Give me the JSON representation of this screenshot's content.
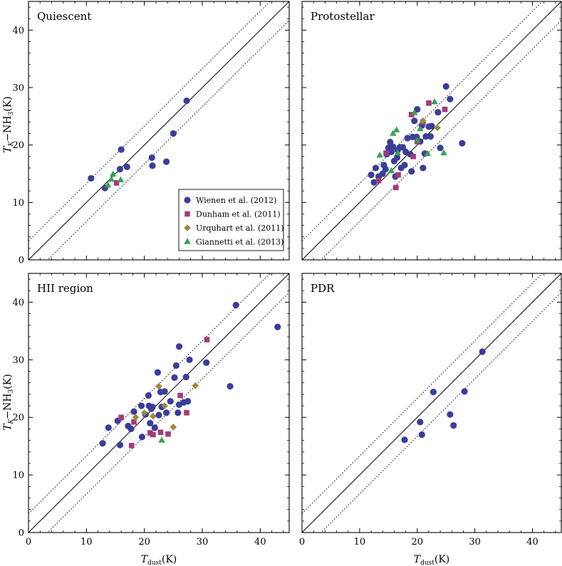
{
  "colors": {
    "wienen": "#3b3d99",
    "dunham": "#a53a78",
    "urquhart": "#9b8a3a",
    "giannetti": "#3aa055"
  },
  "axis_labels": {
    "x": {
      "main": "T",
      "sub": "dust",
      "unit": "(K)"
    },
    "y": {
      "main": "T",
      "sub": "K",
      "mid": "−NH",
      "sub2": "3",
      "unit": "(K)"
    }
  },
  "legend": [
    {
      "name": "Wienen et al. (2012)",
      "marker": "circle",
      "color_key": "wienen"
    },
    {
      "name": "Dunham et al. (2011)",
      "marker": "square",
      "color_key": "dunham"
    },
    {
      "name": "Urquhart et al. (2011)",
      "marker": "diamond",
      "color_key": "urquhart"
    },
    {
      "name": "Giannetti et al. (2013)",
      "marker": "triangle",
      "color_key": "giannetti"
    }
  ],
  "chart_data": [
    {
      "type": "scatter",
      "title": "Quiescent",
      "xlim": [
        0,
        45
      ],
      "ylim": [
        0,
        45
      ],
      "xticks": [
        0,
        10,
        20,
        30,
        40
      ],
      "yticks": [
        0,
        10,
        20,
        30,
        40
      ],
      "reference_lines": {
        "one_to_one": true,
        "offset": 3.3
      },
      "show_legend": true,
      "series": [
        {
          "name": "Wienen et al. (2012)",
          "points": [
            [
              10.8,
              14.2
            ],
            [
              13.2,
              12.5
            ],
            [
              15.8,
              15.8
            ],
            [
              16.0,
              19.2
            ],
            [
              17.0,
              16.2
            ],
            [
              21.3,
              17.8
            ],
            [
              21.4,
              16.4
            ],
            [
              23.8,
              17.1
            ],
            [
              25.0,
              22.0
            ],
            [
              27.3,
              27.7
            ]
          ]
        },
        {
          "name": "Dunham et al. (2011)",
          "points": [
            [
              15.2,
              13.4
            ]
          ]
        },
        {
          "name": "Urquhart et al. (2011)",
          "points": []
        },
        {
          "name": "Giannetti et al. (2013)",
          "points": [
            [
              13.7,
              13.0
            ],
            [
              14.3,
              14.0
            ],
            [
              14.6,
              14.9
            ],
            [
              15.9,
              13.9
            ]
          ]
        }
      ]
    },
    {
      "type": "scatter",
      "title": "Protostellar",
      "xlim": [
        0,
        45
      ],
      "ylim": [
        0,
        45
      ],
      "xticks": [
        0,
        10,
        20,
        30,
        40
      ],
      "yticks": [
        0,
        10,
        20,
        30,
        40
      ],
      "reference_lines": {
        "one_to_one": true,
        "offset": 3.3
      },
      "show_legend": false,
      "series": [
        {
          "name": "Wienen et al. (2012)",
          "points": [
            [
              12.0,
              14.8
            ],
            [
              12.5,
              13.5
            ],
            [
              12.8,
              16.0
            ],
            [
              13.3,
              14.5
            ],
            [
              14.0,
              15.0
            ],
            [
              14.2,
              16.5
            ],
            [
              14.5,
              15.8
            ],
            [
              14.7,
              18.4
            ],
            [
              15.0,
              19.5
            ],
            [
              15.3,
              20.5
            ],
            [
              15.5,
              18.8
            ],
            [
              15.8,
              19.7
            ],
            [
              16.0,
              17.2
            ],
            [
              16.2,
              14.5
            ],
            [
              16.5,
              17.8
            ],
            [
              16.6,
              19.1
            ],
            [
              17.0,
              19.6
            ],
            [
              17.2,
              16.0
            ],
            [
              17.5,
              19.6
            ],
            [
              17.8,
              16.5
            ],
            [
              18.0,
              18.8
            ],
            [
              18.3,
              21.2
            ],
            [
              18.8,
              18.4
            ],
            [
              19.0,
              15.4
            ],
            [
              19.2,
              21.4
            ],
            [
              19.5,
              24.2
            ],
            [
              19.9,
              21.4
            ],
            [
              20.0,
              26.2
            ],
            [
              20.5,
              20.6
            ],
            [
              20.8,
              23.4
            ],
            [
              21.0,
              16.0
            ],
            [
              21.3,
              18.5
            ],
            [
              21.5,
              21.5
            ],
            [
              22.0,
              23.2
            ],
            [
              22.3,
              21.5
            ],
            [
              22.5,
              23.3
            ],
            [
              23.6,
              25.7
            ],
            [
              24.0,
              19.5
            ],
            [
              25.0,
              30.2
            ],
            [
              25.7,
              28.0
            ],
            [
              27.8,
              20.3
            ]
          ]
        },
        {
          "name": "Dunham et al. (2011)",
          "points": [
            [
              13.3,
              13.8
            ],
            [
              14.6,
              18.6
            ],
            [
              16.3,
              12.6
            ],
            [
              16.7,
              14.8
            ],
            [
              19.0,
              25.3
            ],
            [
              19.3,
              18.0
            ],
            [
              20.0,
              20.6
            ],
            [
              21.0,
              24.0
            ],
            [
              22.0,
              27.3
            ],
            [
              24.8,
              26.2
            ]
          ]
        },
        {
          "name": "Urquhart et al. (2011)",
          "points": [
            [
              21.0,
              24.2
            ],
            [
              23.5,
              23.0
            ]
          ]
        },
        {
          "name": "Giannetti et al. (2013)",
          "points": [
            [
              13.5,
              18.2
            ],
            [
              15.5,
              15.5
            ],
            [
              15.8,
              22.0
            ],
            [
              16.4,
              22.6
            ],
            [
              16.6,
              18.6
            ],
            [
              19.5,
              25.6
            ],
            [
              20.0,
              20.8
            ],
            [
              20.5,
              22.8
            ],
            [
              21.8,
              18.5
            ],
            [
              23.0,
              27.5
            ],
            [
              24.6,
              18.6
            ]
          ]
        }
      ]
    },
    {
      "type": "scatter",
      "title": "HII region",
      "xlim": [
        0,
        45
      ],
      "ylim": [
        0,
        45
      ],
      "xticks": [
        0,
        10,
        20,
        30,
        40
      ],
      "yticks": [
        0,
        10,
        20,
        30,
        40
      ],
      "reference_lines": {
        "one_to_one": true,
        "offset": 3.3
      },
      "show_legend": false,
      "series": [
        {
          "name": "Wienen et al. (2012)",
          "points": [
            [
              12.8,
              15.5
            ],
            [
              13.8,
              18.2
            ],
            [
              15.4,
              19.4
            ],
            [
              15.8,
              15.2
            ],
            [
              17.2,
              18.5
            ],
            [
              17.7,
              18.0
            ],
            [
              18.2,
              21.0
            ],
            [
              19.5,
              22.0
            ],
            [
              19.6,
              16.6
            ],
            [
              20.2,
              20.5
            ],
            [
              20.7,
              23.8
            ],
            [
              20.8,
              22.0
            ],
            [
              21.0,
              19.0
            ],
            [
              21.2,
              21.5
            ],
            [
              21.4,
              21.8
            ],
            [
              21.8,
              18.2
            ],
            [
              22.3,
              27.8
            ],
            [
              22.5,
              20.4
            ],
            [
              22.8,
              24.4
            ],
            [
              23.0,
              21.8
            ],
            [
              23.5,
              24.5
            ],
            [
              23.8,
              20.8
            ],
            [
              24.5,
              22.8
            ],
            [
              25.2,
              26.9
            ],
            [
              25.5,
              29.0
            ],
            [
              25.8,
              20.8
            ],
            [
              26.0,
              22.2
            ],
            [
              26.0,
              32.3
            ],
            [
              26.8,
              22.6
            ],
            [
              27.2,
              27.0
            ],
            [
              27.5,
              22.8
            ],
            [
              27.8,
              30.0
            ],
            [
              30.7,
              29.5
            ],
            [
              34.8,
              25.4
            ],
            [
              35.8,
              39.5
            ],
            [
              43.0,
              35.7
            ]
          ]
        },
        {
          "name": "Dunham et al. (2011)",
          "points": [
            [
              16.0,
              20.0
            ],
            [
              17.8,
              15.1
            ],
            [
              18.2,
              19.2
            ],
            [
              21.0,
              17.3
            ],
            [
              21.5,
              17.0
            ],
            [
              22.8,
              17.4
            ],
            [
              24.1,
              17.1
            ],
            [
              26.2,
              23.8
            ],
            [
              27.3,
              20.8
            ],
            [
              30.8,
              33.5
            ]
          ]
        },
        {
          "name": "Urquhart et al. (2011)",
          "points": [
            [
              18.5,
              20.0
            ],
            [
              20.0,
              20.8
            ],
            [
              21.5,
              20.2
            ],
            [
              22.5,
              25.4
            ],
            [
              23.5,
              22.0
            ],
            [
              25.0,
              18.3
            ],
            [
              28.8,
              25.5
            ]
          ]
        },
        {
          "name": "Giannetti et al. (2013)",
          "points": [
            [
              23.0,
              16.0
            ]
          ]
        }
      ]
    },
    {
      "type": "scatter",
      "title": "PDR",
      "xlim": [
        0,
        45
      ],
      "ylim": [
        0,
        45
      ],
      "xticks": [
        0,
        10,
        20,
        30,
        40
      ],
      "yticks": [
        0,
        10,
        20,
        30,
        40
      ],
      "reference_lines": {
        "one_to_one": true,
        "offset": 3.3
      },
      "show_legend": false,
      "series": [
        {
          "name": "Wienen et al. (2012)",
          "points": [
            [
              17.8,
              16.1
            ],
            [
              20.5,
              19.2
            ],
            [
              20.8,
              17.0
            ],
            [
              22.8,
              24.4
            ],
            [
              25.7,
              20.5
            ],
            [
              26.3,
              18.6
            ],
            [
              28.2,
              24.5
            ],
            [
              31.3,
              31.4
            ]
          ]
        },
        {
          "name": "Dunham et al. (2011)",
          "points": []
        },
        {
          "name": "Urquhart et al. (2011)",
          "points": []
        },
        {
          "name": "Giannetti et al. (2013)",
          "points": []
        }
      ]
    }
  ]
}
